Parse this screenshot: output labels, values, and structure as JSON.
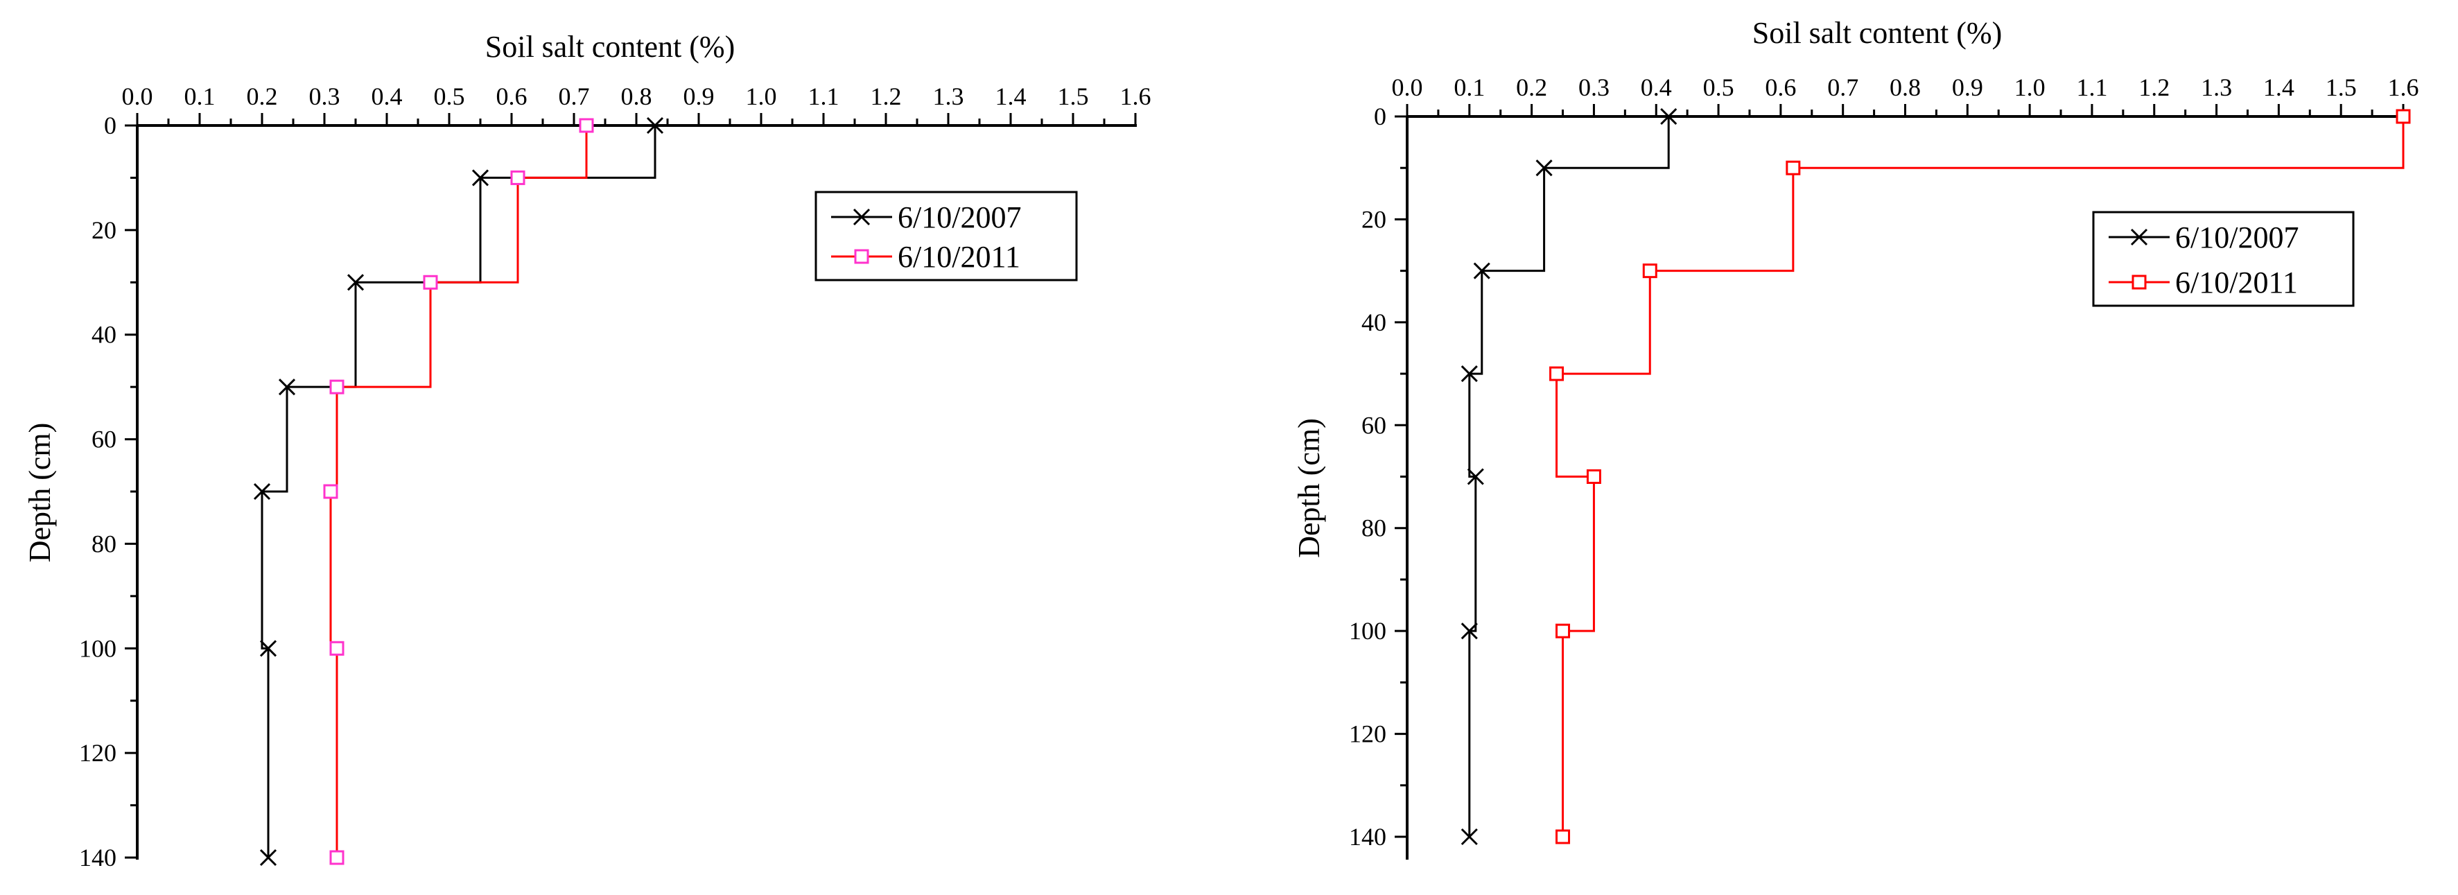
{
  "chart_data": [
    {
      "type": "line",
      "subtype": "step",
      "xlabel": "Soil salt content (%)",
      "ylabel": "Depth (cm)",
      "xlim": [
        0,
        1.6
      ],
      "ylim": [
        0,
        145
      ],
      "x_axis_position": "top",
      "y_axis_inverted": true,
      "xticks": [
        "0.0",
        "0.1",
        "0.2",
        "0.3",
        "0.4",
        "0.5",
        "0.6",
        "0.7",
        "0.8",
        "0.9",
        "1.0",
        "1.1",
        "1.2",
        "1.3",
        "1.4",
        "1.5",
        "1.6"
      ],
      "yticks": [
        "0",
        "20",
        "40",
        "60",
        "80",
        "100",
        "120",
        "140"
      ],
      "grid": false,
      "legend_position": "top-right",
      "series": [
        {
          "name": "6/10/2007",
          "color": "#000000",
          "marker": "x",
          "points": [
            {
              "x": 0.83,
              "y": 0
            },
            {
              "x": 0.55,
              "y": 10
            },
            {
              "x": 0.35,
              "y": 30
            },
            {
              "x": 0.24,
              "y": 50
            },
            {
              "x": 0.2,
              "y": 70
            },
            {
              "x": 0.21,
              "y": 100
            },
            {
              "x": 0.21,
              "y": 140
            }
          ]
        },
        {
          "name": "6/10/2011",
          "color": "#ff0000",
          "marker_color": "#ff33cc",
          "marker": "square",
          "points": [
            {
              "x": 0.72,
              "y": 0
            },
            {
              "x": 0.61,
              "y": 10
            },
            {
              "x": 0.47,
              "y": 30
            },
            {
              "x": 0.32,
              "y": 50
            },
            {
              "x": 0.31,
              "y": 70
            },
            {
              "x": 0.32,
              "y": 100
            },
            {
              "x": 0.32,
              "y": 140
            }
          ]
        }
      ]
    },
    {
      "type": "line",
      "subtype": "step",
      "xlabel": "Soil salt content (%)",
      "ylabel": "Depth (cm)",
      "xlim": [
        0,
        1.6
      ],
      "ylim": [
        0,
        145
      ],
      "x_axis_position": "top",
      "y_axis_inverted": true,
      "xticks": [
        "0.0",
        "0.1",
        "0.2",
        "0.3",
        "0.4",
        "0.5",
        "0.6",
        "0.7",
        "0.8",
        "0.9",
        "1.0",
        "1.1",
        "1.2",
        "1.3",
        "1.4",
        "1.5",
        "1.6"
      ],
      "yticks": [
        "0",
        "20",
        "40",
        "60",
        "80",
        "100",
        "120",
        "140"
      ],
      "grid": false,
      "legend_position": "top-right",
      "series": [
        {
          "name": "6/10/2007",
          "color": "#000000",
          "marker": "x",
          "points": [
            {
              "x": 0.42,
              "y": 0
            },
            {
              "x": 0.22,
              "y": 10
            },
            {
              "x": 0.12,
              "y": 30
            },
            {
              "x": 0.1,
              "y": 50
            },
            {
              "x": 0.11,
              "y": 70
            },
            {
              "x": 0.1,
              "y": 100
            },
            {
              "x": 0.1,
              "y": 140
            }
          ]
        },
        {
          "name": "6/10/2011",
          "color": "#ff0000",
          "marker_color": "#ff0000",
          "marker": "square",
          "points": [
            {
              "x": 1.6,
              "y": 0
            },
            {
              "x": 0.62,
              "y": 10
            },
            {
              "x": 0.39,
              "y": 30
            },
            {
              "x": 0.24,
              "y": 50
            },
            {
              "x": 0.3,
              "y": 70
            },
            {
              "x": 0.25,
              "y": 100
            },
            {
              "x": 0.25,
              "y": 140
            }
          ]
        }
      ]
    }
  ]
}
